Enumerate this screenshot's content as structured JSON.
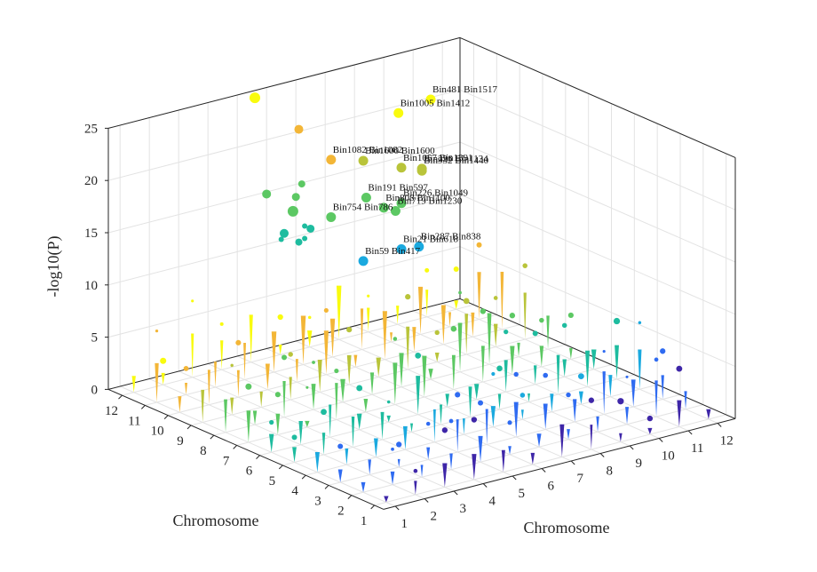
{
  "chart_data": {
    "type": "scatter3d",
    "title": "",
    "xlabel": "Chromosome",
    "ylabel": "Chromosome",
    "zlabel": "-log10(P)",
    "x_ticks": [
      "1",
      "2",
      "3",
      "4",
      "5",
      "6",
      "7",
      "8",
      "9",
      "10",
      "11",
      "12"
    ],
    "y_ticks": [
      "1",
      "2",
      "3",
      "4",
      "5",
      "6",
      "7",
      "8",
      "9",
      "10",
      "11",
      "12"
    ],
    "z_ticks": [
      "0",
      "5",
      "10",
      "15",
      "20",
      "25"
    ],
    "xlim": [
      0.6,
      12.6
    ],
    "ylim": [
      0.6,
      12.6
    ],
    "zlim": [
      0,
      25
    ],
    "grid": true,
    "colormap": [
      "#3e26a8",
      "#2f6bf1",
      "#1aa9df",
      "#1ebc9f",
      "#5cc863",
      "#b9c43a",
      "#f3b637",
      "#f9fb0e"
    ],
    "highlighted": [
      {
        "x": 11.6,
        "y": 12.6,
        "z": 19.8,
        "label": "Bin481 Bin1517"
      },
      {
        "x": 10.5,
        "y": 12.6,
        "z": 19.3,
        "label": "Bin1005 Bin1412"
      },
      {
        "x": 9.3,
        "y": 12.6,
        "z": 15.6,
        "label": "Bin1600 Bin1600"
      },
      {
        "x": 8.2,
        "y": 12.6,
        "z": 16.5,
        "label": "Bin1082 Bin1082"
      },
      {
        "x": 10.6,
        "y": 12.6,
        "z": 14.0,
        "label": "Bin1057 Bin1391"
      },
      {
        "x": 11.3,
        "y": 12.6,
        "z": 13.4,
        "label": "Bin226 Bin1134"
      },
      {
        "x": 11.3,
        "y": 12.6,
        "z": 13.2,
        "label": "Bin932 Bin1440"
      },
      {
        "x": 9.4,
        "y": 12.6,
        "z": 12.0,
        "label": "Bin191 Bin597"
      },
      {
        "x": 10.0,
        "y": 12.6,
        "z": 10.6,
        "label": "Bin808 Bin1100"
      },
      {
        "x": 10.6,
        "y": 12.6,
        "z": 10.6,
        "label": "Bin226 Bin1049"
      },
      {
        "x": 10.4,
        "y": 12.6,
        "z": 10.0,
        "label": "Bin719 Bin1230"
      },
      {
        "x": 8.2,
        "y": 12.6,
        "z": 11.0,
        "label": "Bin754 Bin786"
      },
      {
        "x": 10.6,
        "y": 12.6,
        "z": 6.2,
        "label": "Bin21 Bin618"
      },
      {
        "x": 11.2,
        "y": 12.6,
        "z": 6.0,
        "label": "Bin287 Bin838"
      },
      {
        "x": 9.3,
        "y": 12.6,
        "z": 6.0,
        "label": "Bin59 Bin417"
      }
    ],
    "scattered_points": [
      {
        "x": 5.6,
        "y": 12.6,
        "z": 24.3,
        "size": 12
      },
      {
        "x": 7.1,
        "y": 12.6,
        "z": 20.2,
        "size": 10
      },
      {
        "x": 6.0,
        "y": 12.6,
        "z": 14.8,
        "size": 10
      },
      {
        "x": 7.0,
        "y": 12.6,
        "z": 13.8,
        "size": 9
      },
      {
        "x": 7.2,
        "y": 12.6,
        "z": 14.9,
        "size": 8
      },
      {
        "x": 6.9,
        "y": 12.6,
        "z": 12.5,
        "size": 12
      },
      {
        "x": 6.6,
        "y": 12.6,
        "z": 10.6,
        "size": 10
      },
      {
        "x": 6.5,
        "y": 12.6,
        "z": 10.1,
        "size": 6
      },
      {
        "x": 7.5,
        "y": 12.6,
        "z": 10.4,
        "size": 9
      },
      {
        "x": 7.3,
        "y": 12.6,
        "z": 10.8,
        "size": 6
      },
      {
        "x": 7.1,
        "y": 12.6,
        "z": 9.4,
        "size": 8
      },
      {
        "x": 7.3,
        "y": 12.6,
        "z": 9.6,
        "size": 6
      }
    ]
  }
}
